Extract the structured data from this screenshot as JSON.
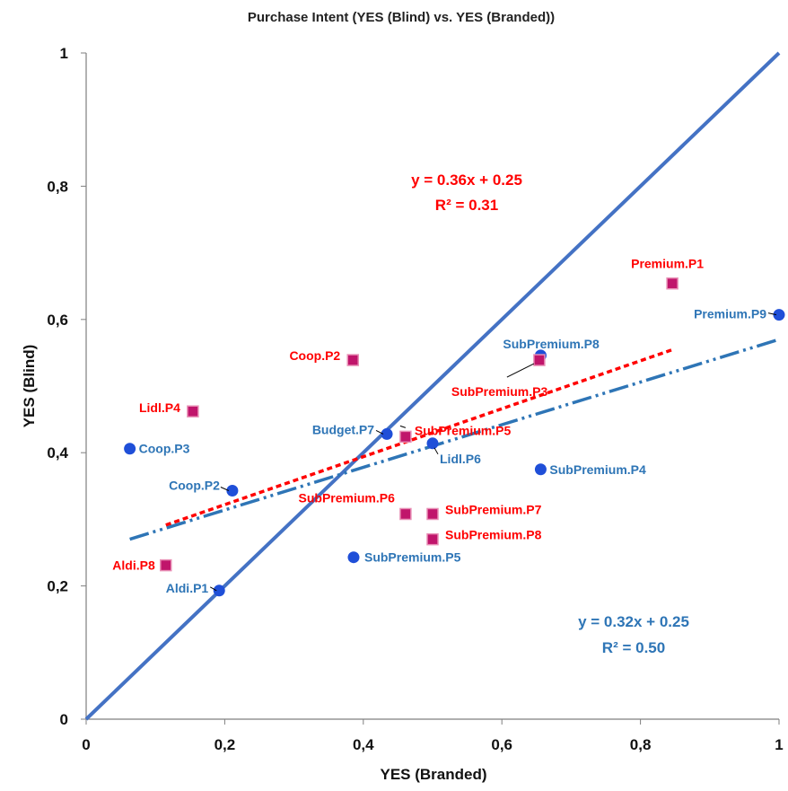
{
  "chart_data": {
    "type": "scatter",
    "title": "Purchase Intent (YES (Blind) vs. YES (Branded))",
    "xlabel": "YES (Branded)",
    "ylabel": "YES (Blind)",
    "xlim": [
      0,
      1
    ],
    "ylim": [
      0,
      1
    ],
    "xticks": [
      "0",
      "0,2",
      "0,4",
      "0,6",
      "0,8",
      "1"
    ],
    "yticks": [
      "0",
      "0,2",
      "0,4",
      "0,6",
      "0,8",
      "1"
    ],
    "grid": false,
    "colors": {
      "blue": "#1f4fd8",
      "blue_label": "#2e75b6",
      "red": "#ff0000",
      "marker_fill": "#c0156b",
      "diagonal": "#4472c4",
      "blue_trend": "#2e75b6"
    },
    "series": [
      {
        "color": "#1f4fd8",
        "marker": "circle",
        "points": [
          {
            "label": "Aldi.P1",
            "x": 0.192,
            "y": 0.193
          },
          {
            "label": "Coop.P2",
            "x": 0.211,
            "y": 0.343
          },
          {
            "label": "Coop.P3",
            "x": 0.063,
            "y": 0.406
          },
          {
            "label": "Budget.P7",
            "x": 0.434,
            "y": 0.428
          },
          {
            "label": "Lidl.P6",
            "x": 0.5,
            "y": 0.414
          },
          {
            "label": "SubPremium.P4",
            "x": 0.656,
            "y": 0.375
          },
          {
            "label": "SubPremium.P5",
            "x": 0.386,
            "y": 0.243
          },
          {
            "label": "SubPremium.P8",
            "x": 0.656,
            "y": 0.546
          },
          {
            "label": "Premium.P9",
            "x": 1.0,
            "y": 0.607
          }
        ],
        "trendline": {
          "equation": "y = 0.32x + 0.25",
          "r2": "R² = 0.50",
          "x_range": [
            0.063,
            1.0
          ],
          "slope": 0.32,
          "intercept": 0.25
        }
      },
      {
        "color": "#ff0000",
        "marker": "square",
        "points": [
          {
            "label": "Aldi.P8",
            "x": 0.115,
            "y": 0.231
          },
          {
            "label": "Lidl.P4",
            "x": 0.154,
            "y": 0.462
          },
          {
            "label": "Coop.P2",
            "x": 0.385,
            "y": 0.539
          },
          {
            "label": "SubPremium.P5",
            "x": 0.461,
            "y": 0.424
          },
          {
            "label": "SubPremium.P6",
            "x": 0.461,
            "y": 0.308
          },
          {
            "label": "SubPremium.P7",
            "x": 0.5,
            "y": 0.308
          },
          {
            "label": "SubPremium.P8",
            "x": 0.5,
            "y": 0.27
          },
          {
            "label": "SubPremium.P3",
            "x": 0.654,
            "y": 0.539
          },
          {
            "label": "Premium.P1",
            "x": 0.846,
            "y": 0.654
          }
        ],
        "trendline": {
          "equation": "y = 0.36x + 0.25",
          "r2": "R² = 0.31",
          "x_range": [
            0.115,
            0.846
          ],
          "slope": 0.36,
          "intercept": 0.25
        }
      }
    ],
    "reference_line": {
      "x": [
        0,
        1
      ],
      "y": [
        0,
        1
      ]
    }
  }
}
